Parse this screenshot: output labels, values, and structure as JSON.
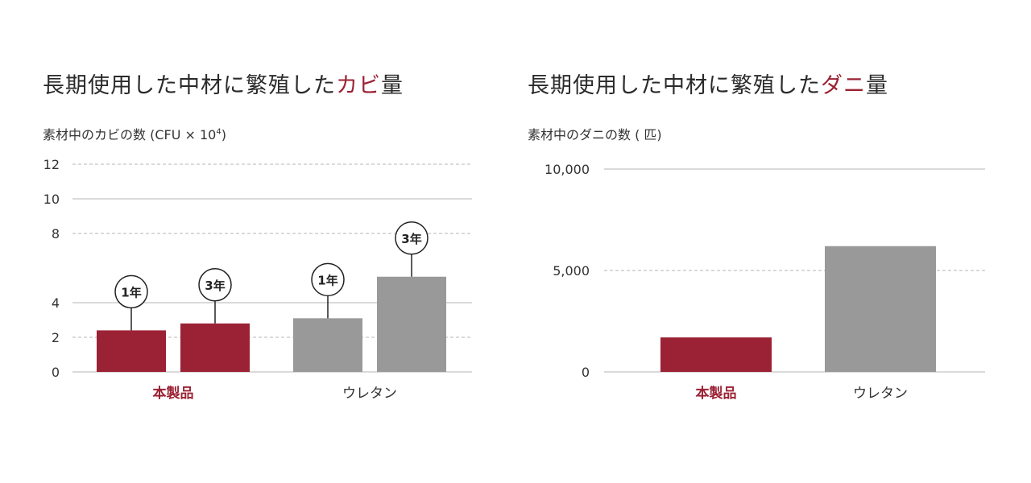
{
  "left": {
    "title_prefix": "長期使用した中材に繁殖した",
    "title_accent": "カビ",
    "title_suffix": "量",
    "unit_label": "素材中のカビの数 (CFU × 10",
    "unit_sup": "4",
    "unit_close": ")"
  },
  "right": {
    "title_prefix": "長期使用した中材に繁殖した",
    "title_accent": "ダニ",
    "title_suffix": "量",
    "unit_label": "素材中のダニの数 ( 匹)"
  },
  "colors": {
    "accent": "#9b2234",
    "gray": "#999999"
  },
  "chart_data": [
    {
      "type": "bar",
      "title": "長期使用した中材に繁殖したカビ量",
      "ylabel": "素材中のカビの数 (CFU × 10⁴)",
      "ylim": [
        0,
        12
      ],
      "yticks": [
        0,
        2,
        4,
        8,
        10,
        12
      ],
      "groups": [
        {
          "category": "本製品",
          "color": "#9b2234",
          "bars": [
            {
              "label": "1年",
              "value": 2.4
            },
            {
              "label": "3年",
              "value": 2.8
            }
          ]
        },
        {
          "category": "ウレタン",
          "color": "#999999",
          "bars": [
            {
              "label": "1年",
              "value": 3.1
            },
            {
              "label": "3年",
              "value": 5.5
            }
          ]
        }
      ],
      "grid": true
    },
    {
      "type": "bar",
      "title": "長期使用した中材に繁殖したダニ量",
      "ylabel": "素材中のダニの数 ( 匹)",
      "ylim": [
        0,
        10000
      ],
      "yticks": [
        "0",
        "5,000",
        "10,000"
      ],
      "categories": [
        "本製品",
        "ウレタン"
      ],
      "values": [
        1700,
        6200
      ],
      "colors": [
        "#9b2234",
        "#999999"
      ],
      "grid": true
    }
  ]
}
